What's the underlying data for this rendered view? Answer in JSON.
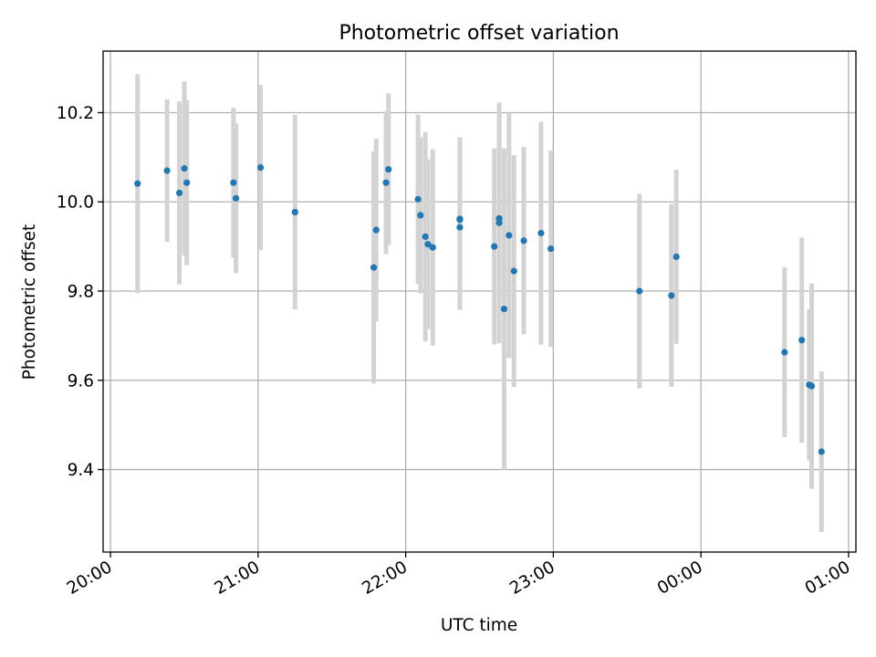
{
  "chart_data": {
    "type": "scatter",
    "title": "Photometric offset variation",
    "xlabel": "UTC time",
    "ylabel": "Photometric offset",
    "x_unit": "time of day (HH:MM), 20:00 to 01:00 next day",
    "x_range": [
      "19:57",
      "01:03"
    ],
    "ylim": [
      9.215,
      10.338
    ],
    "x_ticks": [
      "20:00",
      "21:00",
      "22:00",
      "23:00",
      "00:00",
      "01:00"
    ],
    "y_ticks": [
      9.4,
      9.6,
      9.8,
      10.0,
      10.2
    ],
    "y_tick_labels": [
      "9.4",
      "9.6",
      "9.8",
      "10.0",
      "10.2"
    ],
    "grid": true,
    "colors": {
      "points": "#1f77b4",
      "error_bars": "#d3d3d3",
      "grid": "#b0b0b0"
    },
    "points": [
      {
        "t": "20:11",
        "y": 10.041,
        "err": 0.245
      },
      {
        "t": "20:23",
        "y": 10.07,
        "err": 0.16
      },
      {
        "t": "20:28",
        "y": 10.02,
        "err": 0.205
      },
      {
        "t": "20:30",
        "y": 10.075,
        "err": 0.195
      },
      {
        "t": "20:31",
        "y": 10.043,
        "err": 0.185
      },
      {
        "t": "20:50",
        "y": 10.043,
        "err": 0.168
      },
      {
        "t": "20:51",
        "y": 10.008,
        "err": 0.168
      },
      {
        "t": "21:01",
        "y": 10.077,
        "err": 0.185
      },
      {
        "t": "21:15",
        "y": 9.977,
        "err": 0.218
      },
      {
        "t": "21:47",
        "y": 9.853,
        "err": 0.26
      },
      {
        "t": "21:48",
        "y": 9.937,
        "err": 0.205
      },
      {
        "t": "21:52",
        "y": 10.043,
        "err": 0.16
      },
      {
        "t": "21:53",
        "y": 10.073,
        "err": 0.17
      },
      {
        "t": "22:05",
        "y": 10.006,
        "err": 0.19
      },
      {
        "t": "22:06",
        "y": 9.97,
        "err": 0.175
      },
      {
        "t": "22:08",
        "y": 9.922,
        "err": 0.235
      },
      {
        "t": "22:09",
        "y": 9.905,
        "err": 0.19
      },
      {
        "t": "22:11",
        "y": 9.898,
        "err": 0.22
      },
      {
        "t": "22:22",
        "y": 9.962,
        "err": 0.17
      },
      {
        "t": "22:22",
        "y": 9.943,
        "err": 0.185
      },
      {
        "t": "22:22",
        "y": 9.96,
        "err": 0.185
      },
      {
        "t": "22:36",
        "y": 9.9,
        "err": 0.22
      },
      {
        "t": "22:38",
        "y": 9.963,
        "err": 0.21
      },
      {
        "t": "22:38",
        "y": 9.953,
        "err": 0.27
      },
      {
        "t": "22:40",
        "y": 9.76,
        "err": 0.36
      },
      {
        "t": "22:42",
        "y": 9.925,
        "err": 0.275
      },
      {
        "t": "22:44",
        "y": 9.845,
        "err": 0.26
      },
      {
        "t": "22:48",
        "y": 9.913,
        "err": 0.21
      },
      {
        "t": "22:55",
        "y": 9.93,
        "err": 0.25
      },
      {
        "t": "22:59",
        "y": 9.895,
        "err": 0.22
      },
      {
        "t": "23:35",
        "y": 9.8,
        "err": 0.218
      },
      {
        "t": "23:48",
        "y": 9.79,
        "err": 0.205
      },
      {
        "t": "23:50",
        "y": 9.877,
        "err": 0.195
      },
      {
        "t": "00:34",
        "y": 9.663,
        "err": 0.19
      },
      {
        "t": "00:41",
        "y": 9.69,
        "err": 0.23
      },
      {
        "t": "00:44",
        "y": 9.59,
        "err": 0.17
      },
      {
        "t": "00:45",
        "y": 9.587,
        "err": 0.23
      },
      {
        "t": "00:49",
        "y": 9.44,
        "err": 0.18
      }
    ]
  }
}
